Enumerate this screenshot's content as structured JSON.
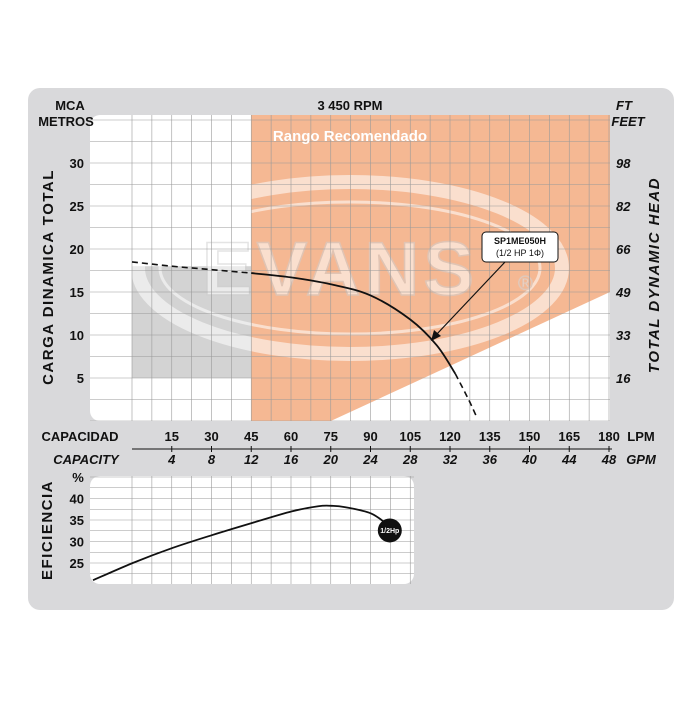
{
  "colors": {
    "frame": "#d9d9db",
    "panel": "#ffffff",
    "grid": "#9a9a9a",
    "recommended_band": "#f5b893",
    "shaded_region": "#d3d3d3",
    "curve": "#111111",
    "marker": "#111111",
    "marker_text": "#ffffff"
  },
  "header": {
    "rpm": "3 450 RPM",
    "left_unit_top": "MCA",
    "left_unit_bottom": "METROS",
    "right_unit_top": "FT",
    "right_unit_bottom": "FEET"
  },
  "logo": {
    "text": "EVANS",
    "registered": "®"
  },
  "chart_data": [
    {
      "type": "line",
      "name": "performance",
      "title": "3 450 RPM",
      "band_label": "Rango Recomendado",
      "xlabel": "CAPACIDAD",
      "xlabel_secondary": "CAPACITY",
      "x_unit": "LPM",
      "x_unit_secondary": "GPM",
      "ylabel": "CARGA  DINAMICA  TOTAL",
      "ylabel_secondary": "TOTAL  DYNAMIC  HEAD",
      "xlim": [
        0,
        180
      ],
      "ylim": [
        0,
        36
      ],
      "x_ticks": [
        15,
        30,
        45,
        60,
        75,
        90,
        105,
        120,
        135,
        150,
        165,
        180
      ],
      "x_ticks_gpm": [
        4,
        8,
        12,
        16,
        20,
        24,
        28,
        32,
        36,
        40,
        44,
        48
      ],
      "y_ticks": [
        5,
        10,
        15,
        20,
        25,
        30
      ],
      "y_ticks_ft": [
        16,
        33,
        49,
        66,
        82,
        98
      ],
      "grid": true,
      "recommended_range_lpm": [
        45,
        180
      ],
      "model_label": "SP1ME050H",
      "model_sub": "(1/2 HP  1Φ)",
      "series": [
        {
          "name": "SP1ME050H",
          "x": [
            0,
            15,
            30,
            45,
            60,
            75,
            90,
            105,
            115,
            122,
            127,
            130
          ],
          "y": [
            18.5,
            18.0,
            17.6,
            17.2,
            16.7,
            15.9,
            14.6,
            11.8,
            8.8,
            5.5,
            2.5,
            0.5
          ],
          "dashed_below_lpm": 45,
          "dashed_above_lpm": 122
        }
      ]
    },
    {
      "type": "line",
      "name": "efficiency",
      "ylabel": "EFICIENCIA",
      "y_unit": "%",
      "xlim": [
        0,
        180
      ],
      "ylim": [
        20,
        45
      ],
      "y_ticks": [
        25,
        30,
        35,
        40
      ],
      "grid": true,
      "marker_label": "1/2Hp",
      "series": [
        {
          "name": "1/2Hp",
          "x": [
            0,
            15,
            30,
            45,
            60,
            75,
            85,
            90,
            95,
            105,
            112
          ],
          "y": [
            21,
            25,
            28.5,
            31.5,
            34.3,
            37,
            38.2,
            38.3,
            38,
            36.5,
            33.5
          ]
        }
      ]
    }
  ]
}
